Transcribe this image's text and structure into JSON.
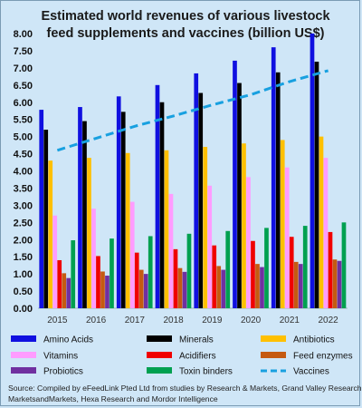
{
  "chart_data": {
    "type": "bar",
    "title_lines": [
      "Estimated world revenues of various livestock",
      "feed supplements and vaccines (billion US$)"
    ],
    "categories": [
      "2015",
      "2016",
      "2017",
      "2018",
      "2019",
      "2020",
      "2021",
      "2022"
    ],
    "ylim": [
      0,
      8
    ],
    "yticks": [
      "0.00",
      "0.50",
      "1.00",
      "1.50",
      "2.00",
      "2.50",
      "3.00",
      "3.50",
      "4.00",
      "4.50",
      "5.00",
      "5.50",
      "6.00",
      "6.50",
      "7.00",
      "7.50",
      "8.00"
    ],
    "grid": false,
    "legend_position": "bottom",
    "series": [
      {
        "name": "Amino Acids",
        "color": "#1010e0",
        "values": [
          5.78,
          5.86,
          6.17,
          6.5,
          6.84,
          7.21,
          7.6,
          8.0
        ]
      },
      {
        "name": "Minerals",
        "color": "#000000",
        "values": [
          5.2,
          5.45,
          5.72,
          6.0,
          6.27,
          6.56,
          6.87,
          7.18
        ]
      },
      {
        "name": "Antibiotics",
        "color": "#ffc000",
        "values": [
          4.3,
          4.38,
          4.52,
          4.6,
          4.7,
          4.8,
          4.9,
          5.0
        ]
      },
      {
        "name": "Vitamins",
        "color": "#ff9cff",
        "values": [
          2.7,
          2.9,
          3.1,
          3.33,
          3.57,
          3.82,
          4.1,
          4.38
        ]
      },
      {
        "name": "Acidifiers",
        "color": "#f00000",
        "values": [
          1.4,
          1.52,
          1.62,
          1.72,
          1.83,
          1.96,
          2.08,
          2.22
        ]
      },
      {
        "name": "Feed enzymes",
        "color": "#c55a11",
        "values": [
          1.02,
          1.07,
          1.12,
          1.17,
          1.23,
          1.29,
          1.35,
          1.42
        ]
      },
      {
        "name": "Probiotics",
        "color": "#7030a0",
        "values": [
          0.88,
          0.95,
          1.0,
          1.06,
          1.12,
          1.2,
          1.29,
          1.38
        ]
      },
      {
        "name": "Toxin binders",
        "color": "#00a050",
        "values": [
          1.98,
          2.03,
          2.1,
          2.17,
          2.25,
          2.34,
          2.4,
          2.5
        ]
      },
      {
        "name": "Vaccines",
        "color": "#18a0e0",
        "type": "line",
        "style": "dashed",
        "values": [
          4.6,
          4.95,
          5.3,
          5.6,
          5.92,
          6.22,
          6.6,
          6.92
        ]
      }
    ]
  },
  "source": {
    "lines": [
      "Source: Compiled by eFeedLink Pted Ltd from studies by Research & Markets, Grand Valley Research,",
      "MarketsandMarkets, Hexa Research and Mordor Intelligence"
    ]
  }
}
